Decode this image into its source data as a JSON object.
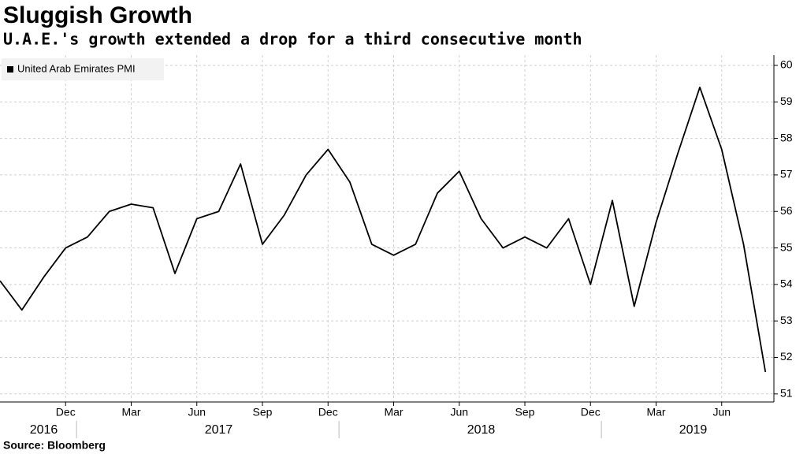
{
  "chart_data": {
    "type": "line",
    "title": "Sluggish Growth",
    "subtitle": "U.A.E.'s growth extended a drop for a third consecutive month",
    "source": "Source: Bloomberg",
    "x": [
      "2016-09",
      "2016-10",
      "2016-11",
      "2016-12",
      "2017-01",
      "2017-02",
      "2017-03",
      "2017-04",
      "2017-05",
      "2017-06",
      "2017-07",
      "2017-08",
      "2017-09",
      "2017-10",
      "2017-11",
      "2017-12",
      "2018-01",
      "2018-02",
      "2018-03",
      "2018-04",
      "2018-05",
      "2018-06",
      "2018-07",
      "2018-08",
      "2018-09",
      "2018-10",
      "2018-11",
      "2018-12",
      "2019-01",
      "2019-02",
      "2019-03",
      "2019-04",
      "2019-05",
      "2019-06",
      "2019-07",
      "2019-08"
    ],
    "series": [
      {
        "name": "United Arab Emirates PMI",
        "color": "#000000",
        "values": [
          54.1,
          53.3,
          54.2,
          55.0,
          55.3,
          56.0,
          56.2,
          56.1,
          54.3,
          55.8,
          56.0,
          57.3,
          55.1,
          55.9,
          57.0,
          57.7,
          56.8,
          55.1,
          54.8,
          55.1,
          56.5,
          57.1,
          55.8,
          55.0,
          55.3,
          55.0,
          55.8,
          54.0,
          56.3,
          53.4,
          55.7,
          57.6,
          59.4,
          57.7,
          55.1,
          51.6
        ]
      }
    ],
    "xticks": [
      {
        "value": "2016-12",
        "label": "Dec"
      },
      {
        "value": "2017-03",
        "label": "Mar"
      },
      {
        "value": "2017-06",
        "label": "Jun"
      },
      {
        "value": "2017-09",
        "label": "Sep"
      },
      {
        "value": "2017-12",
        "label": "Dec"
      },
      {
        "value": "2018-03",
        "label": "Mar"
      },
      {
        "value": "2018-06",
        "label": "Jun"
      },
      {
        "value": "2018-09",
        "label": "Sep"
      },
      {
        "value": "2018-12",
        "label": "Dec"
      },
      {
        "value": "2019-03",
        "label": "Mar"
      },
      {
        "value": "2019-06",
        "label": "Jun"
      }
    ],
    "year_labels": [
      "2016",
      "2017",
      "2018",
      "2019"
    ],
    "ylim": [
      50.78,
      60.28
    ],
    "yticks": [
      51,
      52,
      53,
      54,
      55,
      56,
      57,
      58,
      59,
      60
    ],
    "grid": true,
    "legend": "top-left"
  }
}
